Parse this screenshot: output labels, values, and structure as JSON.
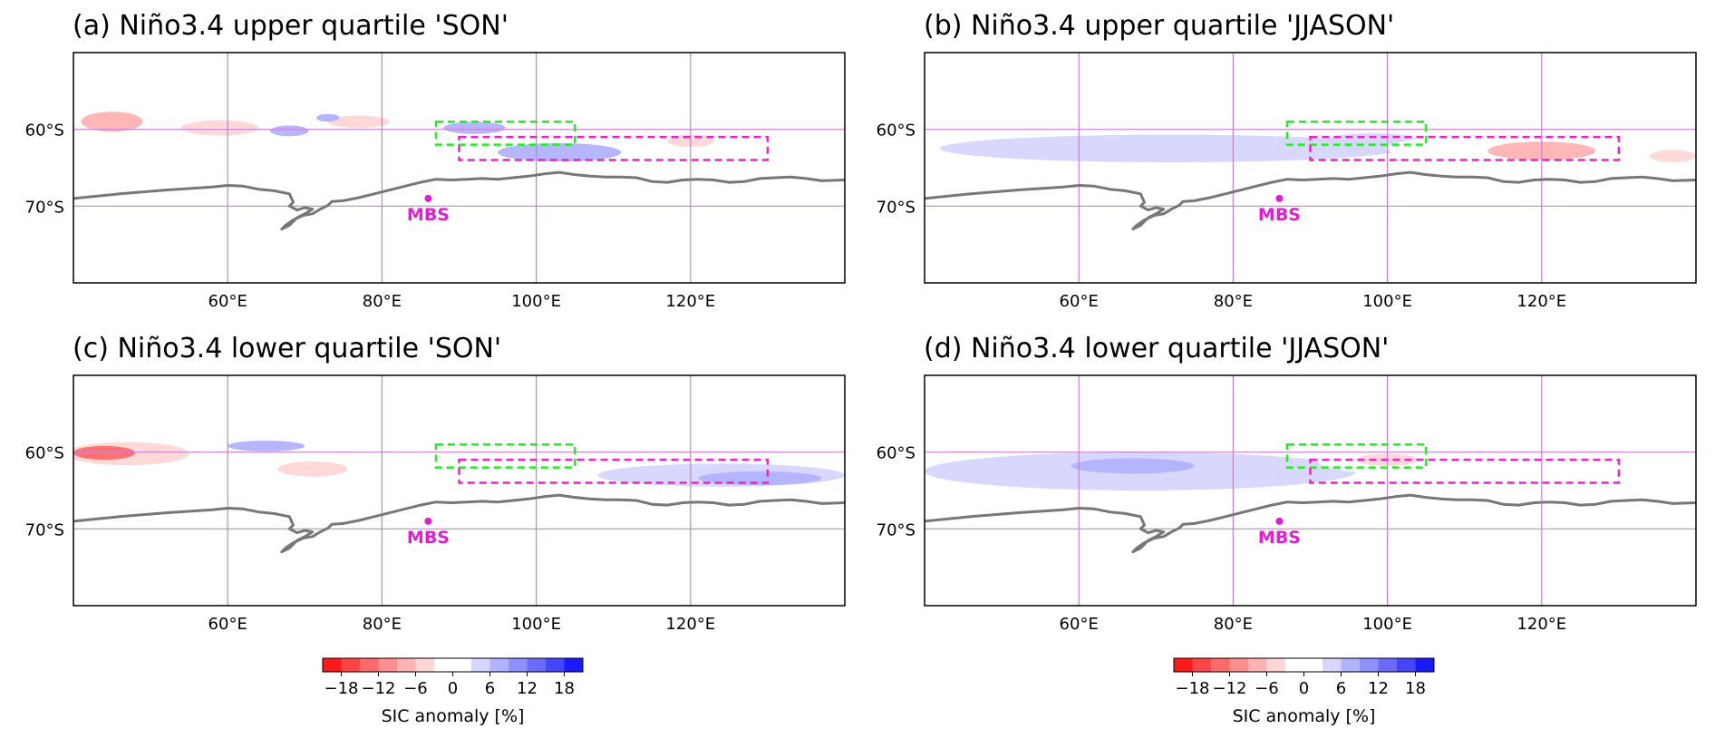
{
  "chart_data": {
    "type": "contour-map",
    "variable": "SIC anomaly",
    "units": "%",
    "lon_range": [
      40,
      140
    ],
    "lat_range": [
      -80,
      -50
    ],
    "lon_ticks": [
      {
        "value": 60,
        "label": "60°E"
      },
      {
        "value": 80,
        "label": "80°E"
      },
      {
        "value": 100,
        "label": "100°E"
      },
      {
        "value": 120,
        "label": "120°E"
      }
    ],
    "lat_ticks": [
      {
        "value": -60,
        "label": "60°S"
      },
      {
        "value": -70,
        "label": "70°S"
      }
    ],
    "station": {
      "name": "MBS",
      "lon": 86,
      "lat": -69
    },
    "green_box": {
      "lon": [
        87,
        105
      ],
      "lat": [
        -59,
        -62
      ]
    },
    "magenta_box": {
      "lon": [
        90,
        130
      ],
      "lat": [
        -61,
        -64
      ]
    },
    "coastline": [
      [
        40,
        -69
      ],
      [
        46,
        -68.4
      ],
      [
        52,
        -67.9
      ],
      [
        58,
        -67.5
      ],
      [
        60,
        -67.3
      ],
      [
        62,
        -67.4
      ],
      [
        64,
        -67.8
      ],
      [
        66,
        -68
      ],
      [
        68,
        -68.4
      ],
      [
        68.5,
        -69.5
      ],
      [
        68,
        -70
      ],
      [
        69,
        -70.5
      ],
      [
        70,
        -70.2
      ],
      [
        71,
        -70.4
      ],
      [
        70,
        -71
      ],
      [
        69,
        -71.5
      ],
      [
        68.5,
        -72
      ],
      [
        68,
        -72.5
      ],
      [
        67,
        -73
      ],
      [
        67.5,
        -72.5
      ],
      [
        68.5,
        -71.8
      ],
      [
        69.8,
        -71.2
      ],
      [
        71,
        -71
      ],
      [
        72,
        -70.4
      ],
      [
        73,
        -69.9
      ],
      [
        73.5,
        -69.4
      ],
      [
        75,
        -69.3
      ],
      [
        77,
        -68.9
      ],
      [
        79,
        -68.4
      ],
      [
        81,
        -67.9
      ],
      [
        83,
        -67.4
      ],
      [
        85,
        -66.9
      ],
      [
        87,
        -66.5
      ],
      [
        89,
        -66.6
      ],
      [
        91,
        -66.5
      ],
      [
        93,
        -66.4
      ],
      [
        95,
        -66.5
      ],
      [
        97,
        -66.3
      ],
      [
        99,
        -66.1
      ],
      [
        101,
        -65.8
      ],
      [
        103,
        -65.6
      ],
      [
        105,
        -65.9
      ],
      [
        107,
        -66.1
      ],
      [
        109,
        -66.2
      ],
      [
        111,
        -66.2
      ],
      [
        113,
        -66.3
      ],
      [
        115,
        -66.8
      ],
      [
        117,
        -66.9
      ],
      [
        119,
        -66.6
      ],
      [
        121,
        -66.5
      ],
      [
        123,
        -66.6
      ],
      [
        125,
        -66.9
      ],
      [
        127,
        -66.8
      ],
      [
        129,
        -66.4
      ],
      [
        131,
        -66.3
      ],
      [
        133,
        -66.2
      ],
      [
        135,
        -66.4
      ],
      [
        137,
        -66.7
      ],
      [
        140,
        -66.6
      ]
    ],
    "colorbar": {
      "levels": [
        -21,
        -18,
        -15,
        -12,
        -9,
        -6,
        -3,
        3,
        6,
        9,
        12,
        15,
        18,
        21
      ],
      "colors": [
        "#ff1a1a",
        "#ff4545",
        "#ff6a6a",
        "#ff8f8f",
        "#ffb2b2",
        "#ffd6d6",
        "#ffffff",
        "#d6d6ff",
        "#b2b2ff",
        "#8f8fff",
        "#6a6aff",
        "#4545ff",
        "#1a1aff"
      ],
      "tick_values": [
        -18,
        -12,
        -6,
        0,
        6,
        12,
        18
      ],
      "tick_labels": [
        "−18",
        "−12",
        "−6",
        "0",
        "6",
        "12",
        "18"
      ],
      "label": "SIC anomaly [%]"
    },
    "panels": [
      {
        "title": "(a) Niño3.4 upper quartile 'SON'",
        "anomalies": [
          {
            "lon": 90,
            "lat": -60.5,
            "rx": 50,
            "ry": 1.8,
            "value": -3
          },
          {
            "lon": 62,
            "lat": -63.5,
            "rx": 18,
            "ry": 2.3,
            "value": -3
          },
          {
            "lon": 45,
            "lat": -59,
            "rx": 4,
            "ry": 1.3,
            "value": -9
          },
          {
            "lon": 59,
            "lat": -59.8,
            "rx": 5,
            "ry": 1.0,
            "value": -6
          },
          {
            "lon": 77,
            "lat": -59,
            "rx": 4,
            "ry": 0.8,
            "value": -6
          },
          {
            "lon": 68,
            "lat": -60.2,
            "rx": 2.5,
            "ry": 0.7,
            "value": 6
          },
          {
            "lon": 73,
            "lat": -58.5,
            "rx": 1.5,
            "ry": 0.5,
            "value": 6
          },
          {
            "lon": 92,
            "lat": -59.8,
            "rx": 4,
            "ry": 0.8,
            "value": 6
          },
          {
            "lon": 103,
            "lat": -63,
            "rx": 8,
            "ry": 1.2,
            "value": 6
          },
          {
            "lon": 120,
            "lat": -61.5,
            "rx": 3,
            "ry": 0.8,
            "value": -6
          }
        ]
      },
      {
        "title": "(b) Niño3.4 upper quartile 'JJASON'",
        "anomalies": [
          {
            "lon": 90,
            "lat": -57.5,
            "rx": 50,
            "ry": 5,
            "value": -3
          },
          {
            "lon": 72,
            "lat": -62.5,
            "rx": 30,
            "ry": 1.8,
            "value": 3
          },
          {
            "lon": 98,
            "lat": -61.5,
            "rx": 6,
            "ry": 1.0,
            "value": 3
          },
          {
            "lon": 118,
            "lat": -62.5,
            "rx": 18,
            "ry": 2.0,
            "value": -3
          },
          {
            "lon": 120,
            "lat": -62.8,
            "rx": 7,
            "ry": 1.2,
            "value": -9
          },
          {
            "lon": 137,
            "lat": -63.5,
            "rx": 3,
            "ry": 0.8,
            "value": -6
          }
        ]
      },
      {
        "title": "(c) Niño3.4 lower quartile 'SON'",
        "anomalies": [
          {
            "lon": 62,
            "lat": -61.5,
            "rx": 24,
            "ry": 2.5,
            "value": -3
          },
          {
            "lon": 47,
            "lat": -60.2,
            "rx": 8,
            "ry": 1.5,
            "value": -6
          },
          {
            "lon": 44,
            "lat": -60.1,
            "rx": 4,
            "ry": 0.9,
            "value": -15
          },
          {
            "lon": 71,
            "lat": -62.2,
            "rx": 4.5,
            "ry": 1.0,
            "value": -6
          },
          {
            "lon": 65,
            "lat": -59.2,
            "rx": 5,
            "ry": 0.7,
            "value": 6
          },
          {
            "lon": 124,
            "lat": -63,
            "rx": 16,
            "ry": 1.5,
            "value": 3
          },
          {
            "lon": 129,
            "lat": -63.4,
            "rx": 8,
            "ry": 0.9,
            "value": 6
          },
          {
            "lon": 100,
            "lat": -61.8,
            "rx": 10,
            "ry": 1.0,
            "value": -3
          }
        ]
      },
      {
        "title": "(d) Niño3.4 lower quartile 'JJASON'",
        "anomalies": [
          {
            "lon": 68,
            "lat": -62.5,
            "rx": 28,
            "ry": 2.5,
            "value": 3
          },
          {
            "lon": 67,
            "lat": -61.8,
            "rx": 8,
            "ry": 1.0,
            "value": 6
          },
          {
            "lon": 102,
            "lat": -61.2,
            "rx": 11,
            "ry": 1.7,
            "value": -3
          },
          {
            "lon": 100,
            "lat": -61,
            "rx": 4,
            "ry": 0.8,
            "value": -6
          },
          {
            "lon": 88,
            "lat": -56,
            "rx": 30,
            "ry": 4,
            "value": -3
          }
        ]
      }
    ]
  }
}
